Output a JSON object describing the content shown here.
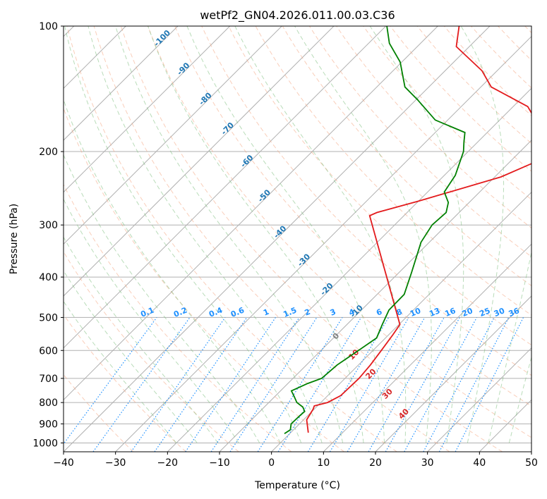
{
  "chart_data": {
    "type": "line",
    "title": "wetPf2_GN04.2026.011.00.03.C36",
    "xlabel": "Temperature (°C)",
    "ylabel": "Pressure (hPa)",
    "xlim": [
      -40,
      50
    ],
    "ylim": [
      1050,
      100
    ],
    "y_scale": "log",
    "grid": true,
    "x_ticks": [
      -40,
      -30,
      -20,
      -10,
      0,
      10,
      20,
      30,
      40,
      50
    ],
    "x_tick_labels": [
      "−40",
      "−30",
      "−20",
      "−10",
      "0",
      "10",
      "20",
      "30",
      "40",
      "50"
    ],
    "y_ticks": [
      100,
      200,
      300,
      400,
      500,
      600,
      700,
      800,
      900,
      1000
    ],
    "y_tick_labels": [
      "100",
      "200",
      "300",
      "400",
      "500",
      "600",
      "700",
      "800",
      "900",
      "1000"
    ],
    "series": [
      {
        "color": "#e31a1c",
        "points": [
          [
            3.4,
            945
          ],
          [
            0.6,
            880
          ],
          [
            -0.2,
            830
          ],
          [
            -0.6,
            815
          ],
          [
            1.3,
            800
          ],
          [
            2.5,
            770
          ],
          [
            2.7,
            700
          ],
          [
            2.3,
            650
          ],
          [
            1.6,
            600
          ],
          [
            0.8,
            550
          ],
          [
            0.2,
            520
          ],
          [
            -26.6,
            285
          ],
          [
            -25.8,
            280
          ],
          [
            -20.0,
            263
          ],
          [
            -8.8,
            230
          ],
          [
            -4.7,
            210
          ],
          [
            -6.8,
            190
          ],
          [
            -10.2,
            177
          ],
          [
            -17.2,
            156
          ],
          [
            -28.0,
            140
          ],
          [
            -32.9,
            128
          ],
          [
            -42.5,
            112
          ],
          [
            -45.9,
            100
          ]
        ]
      },
      {
        "color": "#008000",
        "points": [
          [
            -1.0,
            950
          ],
          [
            -0.6,
            930
          ],
          [
            -1.6,
            900
          ],
          [
            -1.5,
            860
          ],
          [
            -1.4,
            840
          ],
          [
            -2.6,
            820
          ],
          [
            -4.6,
            800
          ],
          [
            -6.2,
            775
          ],
          [
            -7.9,
            750
          ],
          [
            -6.2,
            720
          ],
          [
            -4.5,
            700
          ],
          [
            -4.1,
            650
          ],
          [
            -2.8,
            600
          ],
          [
            -1.7,
            560
          ],
          [
            -3.2,
            520
          ],
          [
            -4.7,
            480
          ],
          [
            -4.8,
            440
          ],
          [
            -7.6,
            390
          ],
          [
            -11.6,
            330
          ],
          [
            -12.8,
            300
          ],
          [
            -12.5,
            280
          ],
          [
            -14.0,
            265
          ],
          [
            -16.8,
            250
          ],
          [
            -17.9,
            228
          ],
          [
            -20.9,
            200
          ],
          [
            -22.6,
            190
          ],
          [
            -24.3,
            180
          ],
          [
            -32.4,
            168
          ],
          [
            -39.8,
            150
          ],
          [
            -44.6,
            140
          ],
          [
            -50.3,
            122
          ],
          [
            -56.0,
            110
          ],
          [
            -59.8,
            100
          ]
        ]
      }
    ],
    "isotherm_labels": [
      "-100",
      "-90",
      "-80",
      "-70",
      "-60",
      "-50",
      "-40",
      "-30",
      "-20",
      "-10"
    ],
    "mixing_ratio_labels": [
      "0.1",
      "0.2",
      "0.4",
      "0.6",
      "1",
      "1.5",
      "2",
      "3",
      "4",
      "6",
      "8",
      "10",
      "13",
      "16",
      "20",
      "25",
      "30",
      "36"
    ],
    "wet_adiabat_labels": [
      "0",
      "10",
      "20",
      "30",
      "40"
    ],
    "colors": {
      "temperature": "#e31a1c",
      "dewpoint": "#008000",
      "isotherm_label": "#1f77b4",
      "mixing_ratio": "#1e90ff",
      "dry_adiabat": "#f4a582",
      "moist_adiabat": "#7fbf7f",
      "wet_adiabat_label": "#d62728",
      "zero_label": "#808080"
    }
  }
}
